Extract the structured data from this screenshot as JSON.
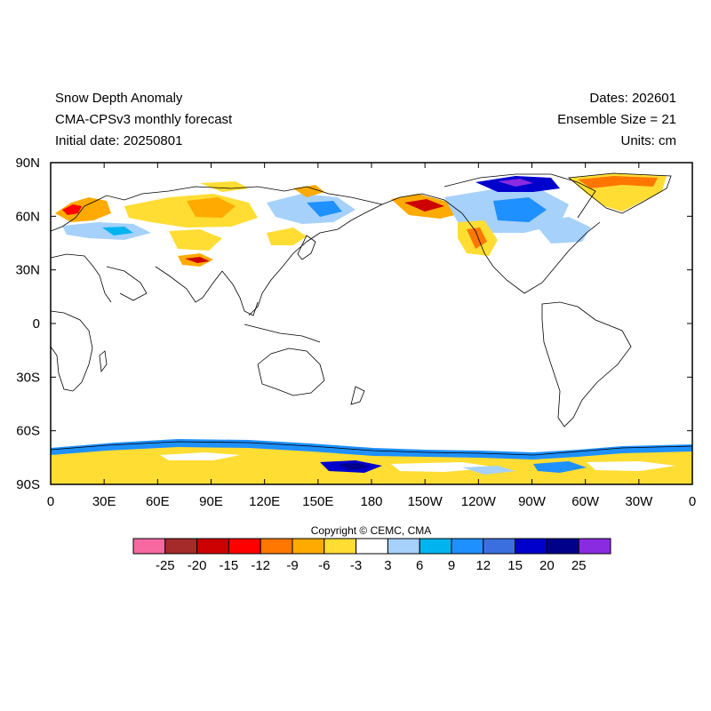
{
  "header": {
    "title": "Snow Depth Anomaly",
    "model": "CMA-CPSv3 monthly forecast",
    "initial_date": "Initial date: 20250801",
    "dates": "Dates: 202601",
    "ensemble": "Ensemble Size = 21",
    "units": "Units: cm"
  },
  "axes": {
    "lat_labels": [
      "90N",
      "60N",
      "30N",
      "0",
      "30S",
      "60S",
      "90S"
    ],
    "lon_labels": [
      "0",
      "30E",
      "60E",
      "90E",
      "120E",
      "150E",
      "180",
      "150W",
      "120W",
      "90W",
      "60W",
      "30W",
      "0"
    ]
  },
  "copyright": "Copyright © CEMC, CMA",
  "colorbar": {
    "colors": [
      "#f768a1",
      "#a52a2a",
      "#cc0000",
      "#ff0000",
      "#ff7700",
      "#ffaa00",
      "#ffdd33",
      "#ffffff",
      "#a6d1fa",
      "#00b4f0",
      "#1e90ff",
      "#3b6fe0",
      "#0000cd",
      "#00008b",
      "#8a2be2"
    ],
    "labels": [
      "-25",
      "-20",
      "-15",
      "-12",
      "-9",
      "-6",
      "-3",
      "3",
      "6",
      "9",
      "12",
      "15",
      "20",
      "25"
    ]
  },
  "colors": {
    "positive_light": "#a6d1fa",
    "positive_mid": "#1e90ff",
    "positive_strong": "#0000cd",
    "negative_light": "#ffdd33",
    "negative_mid": "#ffaa00",
    "negative_strong": "#cc0000"
  }
}
